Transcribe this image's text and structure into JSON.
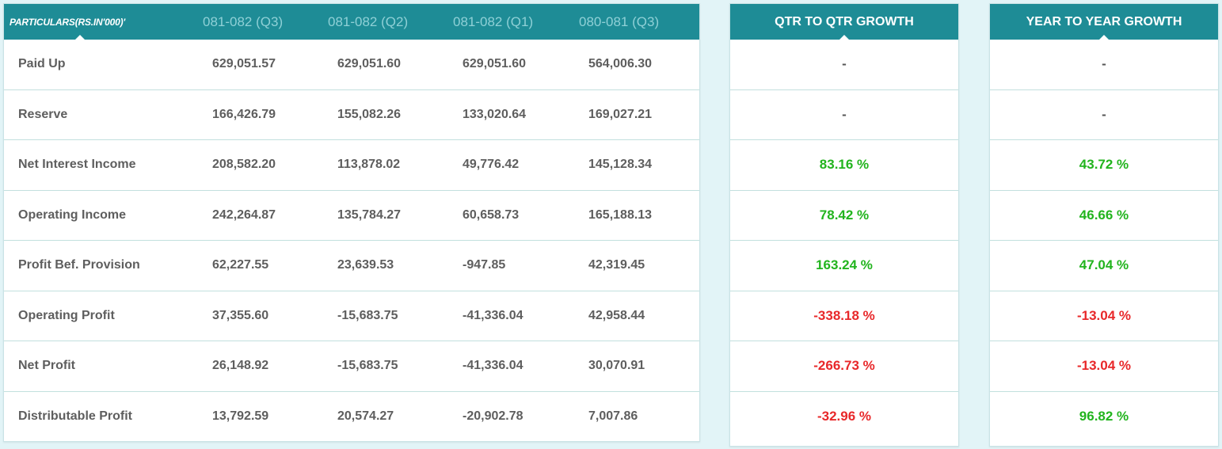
{
  "table": {
    "header": {
      "particulars": "PARTICULARS(RS.IN'000)'",
      "columns": [
        "081-082 (Q3)",
        "081-082 (Q2)",
        "081-082 (Q1)",
        "080-081 (Q3)"
      ]
    },
    "rows": [
      {
        "label": "Paid Up",
        "values": [
          "629,051.57",
          "629,051.60",
          "629,051.60",
          "564,006.30"
        ]
      },
      {
        "label": "Reserve",
        "values": [
          "166,426.79",
          "155,082.26",
          "133,020.64",
          "169,027.21"
        ]
      },
      {
        "label": "Net Interest Income",
        "values": [
          "208,582.20",
          "113,878.02",
          "49,776.42",
          "145,128.34"
        ]
      },
      {
        "label": "Operating Income",
        "values": [
          "242,264.87",
          "135,784.27",
          "60,658.73",
          "165,188.13"
        ]
      },
      {
        "label": "Profit Bef. Provision",
        "values": [
          "62,227.55",
          "23,639.53",
          "-947.85",
          "42,319.45"
        ]
      },
      {
        "label": "Operating Profit",
        "values": [
          "37,355.60",
          "-15,683.75",
          "-41,336.04",
          "42,958.44"
        ]
      },
      {
        "label": "Net Profit",
        "values": [
          "26,148.92",
          "-15,683.75",
          "-41,336.04",
          "30,070.91"
        ]
      },
      {
        "label": "Distributable Profit",
        "values": [
          "13,792.59",
          "20,574.27",
          "-20,902.78",
          "7,007.86"
        ]
      }
    ]
  },
  "qtr_growth": {
    "title": "QTR TO QTR GROWTH",
    "values": [
      "-",
      "-",
      "83.16 %",
      "78.42 %",
      "163.24 %",
      "-338.18 %",
      "-266.73 %",
      "-32.96 %"
    ],
    "status": [
      "neutral",
      "neutral",
      "positive",
      "positive",
      "positive",
      "negative",
      "negative",
      "negative"
    ]
  },
  "yoy_growth": {
    "title": "YEAR TO YEAR GROWTH",
    "values": [
      "-",
      "-",
      "43.72 %",
      "46.66 %",
      "47.04 %",
      "-13.04 %",
      "-13.04 %",
      "96.82 %"
    ],
    "status": [
      "neutral",
      "neutral",
      "positive",
      "positive",
      "positive",
      "negative",
      "negative",
      "positive"
    ]
  },
  "colors": {
    "header_bg": "#1e8c96",
    "positive": "#22b41e",
    "negative": "#e8282a",
    "page_bg": "#e2f4f7"
  }
}
